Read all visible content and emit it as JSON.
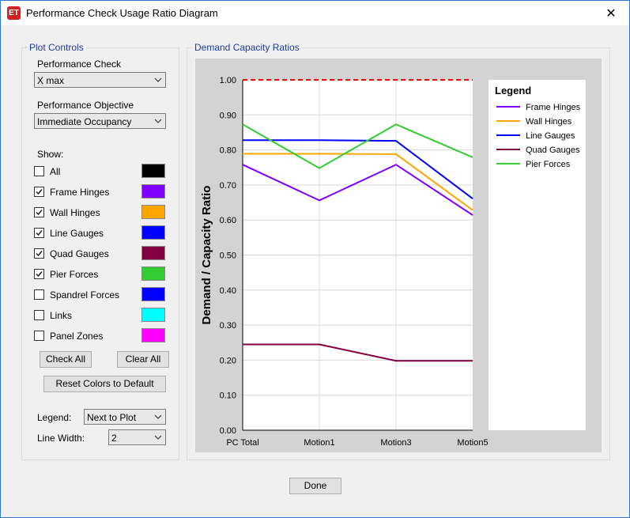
{
  "window": {
    "title": "Performance Check Usage Ratio Diagram",
    "app_icon_text": "ET",
    "close_glyph": "✕"
  },
  "plot_controls": {
    "group_title": "Plot Controls",
    "performance_check_label": "Performance Check",
    "performance_check_value": "X max",
    "performance_objective_label": "Performance Objective",
    "performance_objective_value": "Immediate Occupancy",
    "show_label": "Show:",
    "items": [
      {
        "label": "All",
        "checked": false,
        "color": "#000000"
      },
      {
        "label": "Frame Hinges",
        "checked": true,
        "color": "#8000FF"
      },
      {
        "label": "Wall Hinges",
        "checked": true,
        "color": "#FFA500"
      },
      {
        "label": "Line Gauges",
        "checked": true,
        "color": "#0000FF"
      },
      {
        "label": "Quad Gauges",
        "checked": true,
        "color": "#800040"
      },
      {
        "label": "Pier Forces",
        "checked": true,
        "color": "#33CC33"
      },
      {
        "label": "Spandrel Forces",
        "checked": false,
        "color": "#0000FF"
      },
      {
        "label": "Links",
        "checked": false,
        "color": "#00FFFF"
      },
      {
        "label": "Panel Zones",
        "checked": false,
        "color": "#FF00FF"
      }
    ],
    "check_all_label": "Check All",
    "clear_all_label": "Clear All",
    "reset_colors_label": "Reset Colors to Default",
    "legend_label": "Legend:",
    "legend_value": "Next to Plot",
    "line_width_label": "Line Width:",
    "line_width_value": "2"
  },
  "dcr_group_title": "Demand Capacity Ratios",
  "done_label": "Done",
  "chart_data": {
    "type": "line",
    "ylabel": "Demand / Capacity Ratio",
    "categories": [
      "PC Total",
      "Motion1",
      "Motion3",
      "Motion5"
    ],
    "ylim": [
      0,
      1
    ],
    "yticks": [
      "0.00",
      "0.10",
      "0.20",
      "0.30",
      "0.40",
      "0.50",
      "0.60",
      "0.70",
      "0.80",
      "0.90",
      "1.00"
    ],
    "reference_line": {
      "value": 1.0,
      "color": "#FF0000",
      "style": "dashed"
    },
    "grid": true,
    "legend_title": "Legend",
    "legend_position": "right",
    "series": [
      {
        "name": "Frame Hinges",
        "color": "#8000FF",
        "values": [
          0.758,
          0.656,
          0.758,
          0.614
        ]
      },
      {
        "name": "Wall Hinges",
        "color": "#FFA500",
        "values": [
          0.789,
          0.789,
          0.788,
          0.628
        ]
      },
      {
        "name": "Line Gauges",
        "color": "#0000FF",
        "values": [
          0.828,
          0.828,
          0.826,
          0.661
        ]
      },
      {
        "name": "Quad Gauges",
        "color": "#800040",
        "values": [
          0.245,
          0.245,
          0.198,
          0.198
        ]
      },
      {
        "name": "Pier Forces",
        "color": "#33CC33",
        "values": [
          0.873,
          0.748,
          0.873,
          0.779
        ]
      }
    ]
  }
}
